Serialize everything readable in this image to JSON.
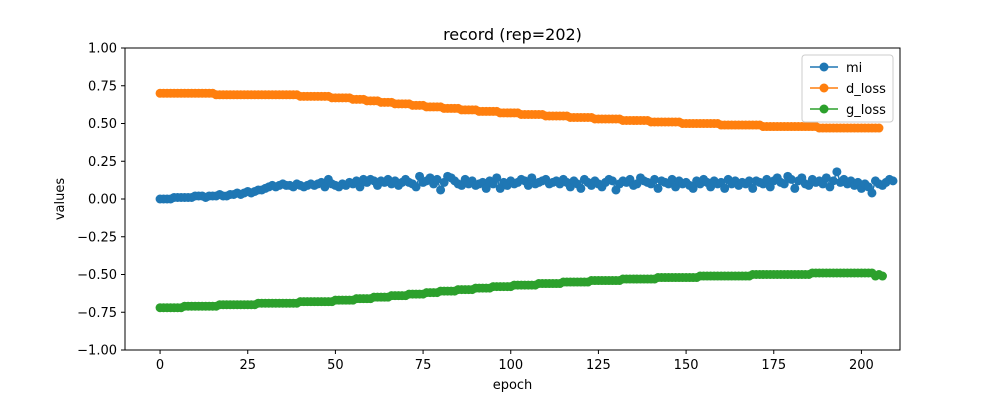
{
  "chart_data": {
    "type": "line",
    "title": "record (rep=202)",
    "xlabel": "epoch",
    "ylabel": "values",
    "xlim": [
      -10,
      211
    ],
    "ylim": [
      -1.0,
      1.0
    ],
    "x_ticks": [
      0,
      25,
      50,
      75,
      100,
      125,
      150,
      175,
      200
    ],
    "y_ticks": [
      -1.0,
      -0.75,
      -0.5,
      -0.25,
      0.0,
      0.25,
      0.5,
      0.75,
      1.0
    ],
    "x_tick_labels": [
      "0",
      "25",
      "50",
      "75",
      "100",
      "125",
      "150",
      "175",
      "200"
    ],
    "y_tick_labels": [
      "−1.00",
      "−0.75",
      "−0.50",
      "−0.25",
      "0.00",
      "0.25",
      "0.50",
      "0.75",
      "1.00"
    ],
    "grid": false,
    "legend_position": "top-right",
    "marker": "circle",
    "series": [
      {
        "name": "mi",
        "color": "#1f77b4",
        "values": [
          0.0,
          0.0,
          0.0,
          0.0,
          0.01,
          0.01,
          0.01,
          0.01,
          0.01,
          0.01,
          0.02,
          0.02,
          0.02,
          0.01,
          0.02,
          0.02,
          0.02,
          0.03,
          0.02,
          0.02,
          0.03,
          0.03,
          0.04,
          0.03,
          0.04,
          0.05,
          0.04,
          0.05,
          0.06,
          0.06,
          0.07,
          0.08,
          0.09,
          0.08,
          0.09,
          0.1,
          0.09,
          0.09,
          0.08,
          0.1,
          0.09,
          0.08,
          0.09,
          0.1,
          0.09,
          0.1,
          0.11,
          0.08,
          0.13,
          0.1,
          0.09,
          0.08,
          0.1,
          0.09,
          0.11,
          0.1,
          0.12,
          0.08,
          0.13,
          0.11,
          0.13,
          0.12,
          0.09,
          0.12,
          0.11,
          0.13,
          0.1,
          0.12,
          0.09,
          0.11,
          0.13,
          0.11,
          0.1,
          0.08,
          0.15,
          0.11,
          0.12,
          0.14,
          0.1,
          0.13,
          0.06,
          0.11,
          0.15,
          0.14,
          0.12,
          0.1,
          0.09,
          0.13,
          0.1,
          0.12,
          0.09,
          0.1,
          0.11,
          0.07,
          0.12,
          0.1,
          0.14,
          0.07,
          0.11,
          0.09,
          0.12,
          0.1,
          0.11,
          0.13,
          0.12,
          0.09,
          0.14,
          0.1,
          0.11,
          0.12,
          0.13,
          0.1,
          0.11,
          0.12,
          0.1,
          0.13,
          0.11,
          0.08,
          0.12,
          0.1,
          0.07,
          0.13,
          0.11,
          0.09,
          0.12,
          0.1,
          0.08,
          0.11,
          0.13,
          0.12,
          0.06,
          0.1,
          0.12,
          0.11,
          0.13,
          0.09,
          0.1,
          0.14,
          0.12,
          0.11,
          0.1,
          0.13,
          0.07,
          0.12,
          0.11,
          0.1,
          0.13,
          0.08,
          0.12,
          0.1,
          0.11,
          0.09,
          0.07,
          0.12,
          0.1,
          0.13,
          0.11,
          0.08,
          0.12,
          0.1,
          0.11,
          0.07,
          0.13,
          0.1,
          0.12,
          0.09,
          0.11,
          0.1,
          0.12,
          0.07,
          0.12,
          0.11,
          0.1,
          0.13,
          0.08,
          0.12,
          0.14,
          0.11,
          0.1,
          0.15,
          0.13,
          0.07,
          0.12,
          0.14,
          0.1,
          0.09,
          0.13,
          0.11,
          0.12,
          0.1,
          0.14,
          0.08,
          0.12,
          0.18,
          0.11,
          0.13,
          0.1,
          0.12,
          0.09,
          0.11,
          0.07,
          0.1,
          0.08,
          0.04,
          0.12,
          0.1,
          0.09,
          0.11,
          0.13,
          0.12
        ]
      },
      {
        "name": "d_loss",
        "color": "#ff7f0e",
        "values": [
          0.7,
          0.7,
          0.7,
          0.7,
          0.7,
          0.7,
          0.7,
          0.7,
          0.7,
          0.7,
          0.7,
          0.7,
          0.7,
          0.7,
          0.7,
          0.7,
          0.69,
          0.69,
          0.69,
          0.69,
          0.69,
          0.69,
          0.69,
          0.69,
          0.69,
          0.69,
          0.69,
          0.69,
          0.69,
          0.69,
          0.69,
          0.69,
          0.69,
          0.69,
          0.69,
          0.69,
          0.69,
          0.69,
          0.69,
          0.69,
          0.68,
          0.68,
          0.68,
          0.68,
          0.68,
          0.68,
          0.68,
          0.68,
          0.68,
          0.67,
          0.67,
          0.67,
          0.67,
          0.67,
          0.67,
          0.66,
          0.66,
          0.66,
          0.66,
          0.65,
          0.65,
          0.65,
          0.65,
          0.64,
          0.64,
          0.64,
          0.64,
          0.63,
          0.63,
          0.63,
          0.63,
          0.63,
          0.62,
          0.62,
          0.62,
          0.62,
          0.61,
          0.61,
          0.61,
          0.61,
          0.61,
          0.6,
          0.6,
          0.6,
          0.6,
          0.6,
          0.59,
          0.59,
          0.59,
          0.59,
          0.59,
          0.58,
          0.58,
          0.58,
          0.58,
          0.58,
          0.58,
          0.57,
          0.57,
          0.57,
          0.57,
          0.57,
          0.57,
          0.56,
          0.56,
          0.56,
          0.56,
          0.56,
          0.56,
          0.56,
          0.55,
          0.55,
          0.55,
          0.55,
          0.55,
          0.55,
          0.55,
          0.54,
          0.54,
          0.54,
          0.54,
          0.54,
          0.54,
          0.54,
          0.53,
          0.53,
          0.53,
          0.53,
          0.53,
          0.53,
          0.53,
          0.53,
          0.52,
          0.52,
          0.52,
          0.52,
          0.52,
          0.52,
          0.52,
          0.52,
          0.51,
          0.51,
          0.51,
          0.51,
          0.51,
          0.51,
          0.51,
          0.51,
          0.51,
          0.5,
          0.5,
          0.5,
          0.5,
          0.5,
          0.5,
          0.5,
          0.5,
          0.5,
          0.5,
          0.5,
          0.49,
          0.49,
          0.49,
          0.49,
          0.49,
          0.49,
          0.49,
          0.49,
          0.49,
          0.49,
          0.49,
          0.49,
          0.48,
          0.48,
          0.48,
          0.48,
          0.48,
          0.48,
          0.48,
          0.48,
          0.48,
          0.48,
          0.48,
          0.48,
          0.48,
          0.48,
          0.48,
          0.48,
          0.47,
          0.47,
          0.47,
          0.47,
          0.47,
          0.47,
          0.47,
          0.47,
          0.47,
          0.47,
          0.47,
          0.47,
          0.47,
          0.47,
          0.47,
          0.47,
          0.47,
          0.47
        ]
      },
      {
        "name": "g_loss",
        "color": "#2ca02c",
        "values": [
          -0.72,
          -0.72,
          -0.72,
          -0.72,
          -0.72,
          -0.72,
          -0.72,
          -0.71,
          -0.71,
          -0.71,
          -0.71,
          -0.71,
          -0.71,
          -0.71,
          -0.71,
          -0.71,
          -0.71,
          -0.7,
          -0.7,
          -0.7,
          -0.7,
          -0.7,
          -0.7,
          -0.7,
          -0.7,
          -0.7,
          -0.7,
          -0.7,
          -0.69,
          -0.69,
          -0.69,
          -0.69,
          -0.69,
          -0.69,
          -0.69,
          -0.69,
          -0.69,
          -0.69,
          -0.69,
          -0.69,
          -0.68,
          -0.68,
          -0.68,
          -0.68,
          -0.68,
          -0.68,
          -0.68,
          -0.68,
          -0.68,
          -0.68,
          -0.67,
          -0.67,
          -0.67,
          -0.67,
          -0.67,
          -0.67,
          -0.66,
          -0.66,
          -0.66,
          -0.66,
          -0.66,
          -0.65,
          -0.65,
          -0.65,
          -0.65,
          -0.65,
          -0.64,
          -0.64,
          -0.64,
          -0.64,
          -0.64,
          -0.63,
          -0.63,
          -0.63,
          -0.63,
          -0.63,
          -0.62,
          -0.62,
          -0.62,
          -0.62,
          -0.61,
          -0.61,
          -0.61,
          -0.61,
          -0.61,
          -0.6,
          -0.6,
          -0.6,
          -0.6,
          -0.6,
          -0.59,
          -0.59,
          -0.59,
          -0.59,
          -0.59,
          -0.58,
          -0.58,
          -0.58,
          -0.58,
          -0.58,
          -0.58,
          -0.57,
          -0.57,
          -0.57,
          -0.57,
          -0.57,
          -0.57,
          -0.57,
          -0.56,
          -0.56,
          -0.56,
          -0.56,
          -0.56,
          -0.56,
          -0.56,
          -0.55,
          -0.55,
          -0.55,
          -0.55,
          -0.55,
          -0.55,
          -0.55,
          -0.55,
          -0.54,
          -0.54,
          -0.54,
          -0.54,
          -0.54,
          -0.54,
          -0.54,
          -0.54,
          -0.54,
          -0.53,
          -0.53,
          -0.53,
          -0.53,
          -0.53,
          -0.53,
          -0.53,
          -0.53,
          -0.53,
          -0.53,
          -0.52,
          -0.52,
          -0.52,
          -0.52,
          -0.52,
          -0.52,
          -0.52,
          -0.52,
          -0.52,
          -0.52,
          -0.52,
          -0.52,
          -0.51,
          -0.51,
          -0.51,
          -0.51,
          -0.51,
          -0.51,
          -0.51,
          -0.51,
          -0.51,
          -0.51,
          -0.51,
          -0.51,
          -0.51,
          -0.51,
          -0.51,
          -0.5,
          -0.5,
          -0.5,
          -0.5,
          -0.5,
          -0.5,
          -0.5,
          -0.5,
          -0.5,
          -0.5,
          -0.5,
          -0.5,
          -0.5,
          -0.5,
          -0.5,
          -0.5,
          -0.5,
          -0.49,
          -0.49,
          -0.49,
          -0.49,
          -0.49,
          -0.49,
          -0.49,
          -0.49,
          -0.49,
          -0.49,
          -0.49,
          -0.49,
          -0.49,
          -0.49,
          -0.49,
          -0.49,
          -0.49,
          -0.49,
          -0.51,
          -0.5,
          -0.51
        ]
      }
    ]
  }
}
